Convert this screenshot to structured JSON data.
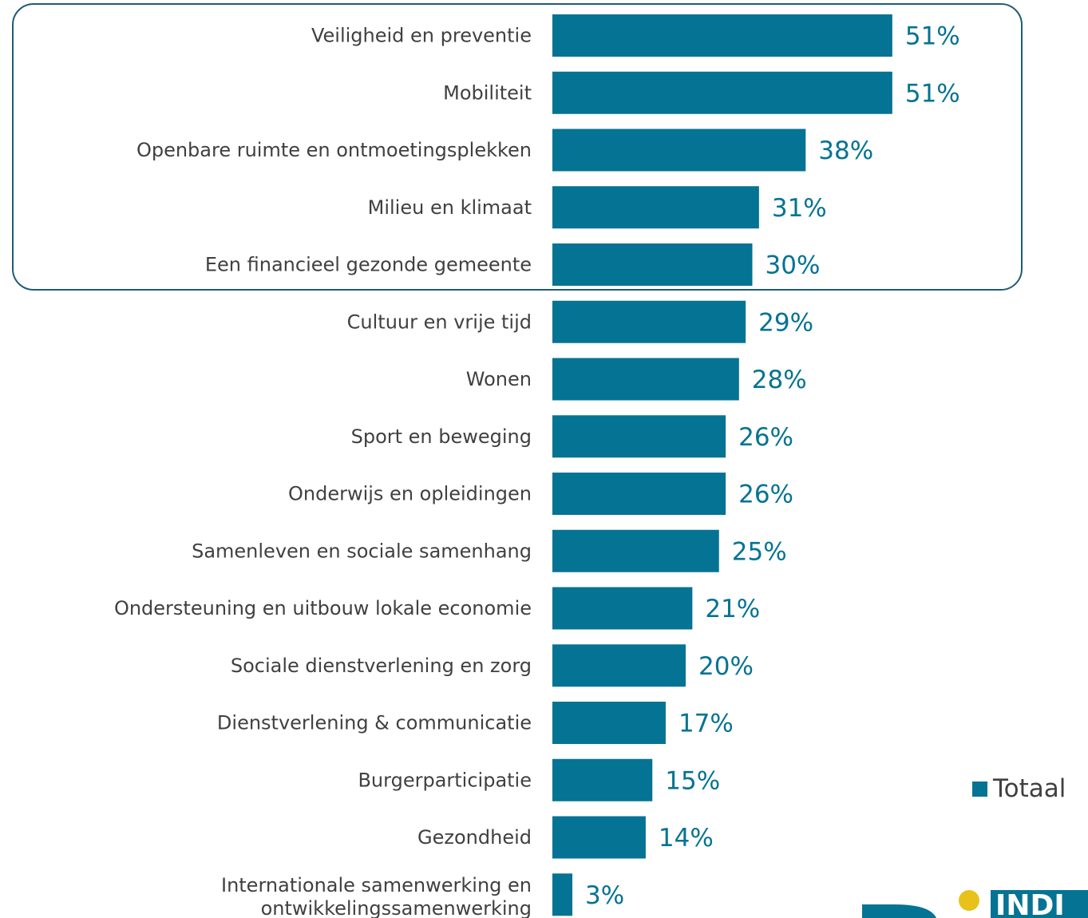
{
  "chart_data": {
    "type": "bar",
    "orientation": "horizontal",
    "categories": [
      "Veiligheid en preventie",
      "Mobiliteit",
      "Openbare ruimte en ontmoetingsplekken",
      "Milieu en klimaat",
      "Een financieel gezonde gemeente",
      "Cultuur en vrije tijd",
      "Wonen",
      "Sport en beweging",
      "Onderwijs en opleidingen",
      "Samenleven en sociale samenhang",
      "Ondersteuning en uitbouw lokale economie",
      "Sociale dienstverlening en zorg",
      "Dienstverlening & communicatie",
      "Burgerparticipatie",
      "Gezondheid",
      [
        "Internationale samenwerking en",
        "ontwikkelingssamenwerking"
      ]
    ],
    "series": [
      {
        "name": "Totaal",
        "values": [
          51,
          51,
          38,
          31,
          30,
          29,
          28,
          26,
          26,
          25,
          21,
          20,
          17,
          15,
          14,
          3
        ],
        "data_labels": [
          "51%",
          "51%",
          "38%",
          "31%",
          "30%",
          "29%",
          "28%",
          "26%",
          "26%",
          "25%",
          "21%",
          "20%",
          "17%",
          "15%",
          "14%",
          "3%"
        ]
      }
    ],
    "highlight_top_n": 5,
    "title": "",
    "xlabel": "",
    "ylabel": "",
    "grid": false,
    "legend_position": "bottom-right",
    "colors": {
      "bar": "#057393",
      "value_label": "#057393",
      "highlight_border": "#1f5b77",
      "category_label": "#404040"
    }
  },
  "legend": {
    "label": "Totaal"
  },
  "logo": {
    "text": "INDI",
    "colors": {
      "primary": "#057393",
      "dot": "#e8c21a"
    }
  }
}
